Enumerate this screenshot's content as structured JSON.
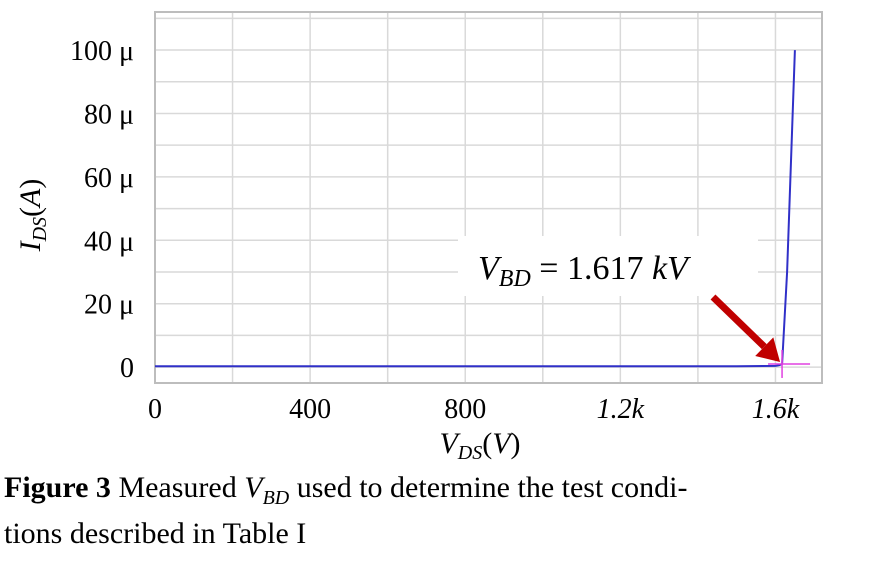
{
  "chart_data": {
    "type": "line",
    "xlabel": "V_DS(V)",
    "ylabel": "I_DS(A)",
    "xlim": [
      0,
      1720
    ],
    "ylim": [
      -5,
      112
    ],
    "x_ticks": [
      {
        "value": 0,
        "label": "0"
      },
      {
        "value": 400,
        "label": "400"
      },
      {
        "value": 800,
        "label": "800"
      },
      {
        "value": 1200,
        "label": "1.2k"
      },
      {
        "value": 1600,
        "label": "1.6k"
      }
    ],
    "y_ticks": [
      {
        "value": 0,
        "label": "0"
      },
      {
        "value": 20,
        "label": "20 μ"
      },
      {
        "value": 40,
        "label": "40 μ"
      },
      {
        "value": 60,
        "label": "60 μ"
      },
      {
        "value": 80,
        "label": "80 μ"
      },
      {
        "value": 100,
        "label": "100 μ"
      }
    ],
    "grid": true,
    "series": [
      {
        "color": "#3030c8",
        "x": [
          0,
          400,
          800,
          1200,
          1500,
          1600,
          1610,
          1617,
          1630,
          1650
        ],
        "y": [
          0.3,
          0.3,
          0.3,
          0.3,
          0.3,
          0.4,
          0.6,
          1.0,
          30,
          100
        ]
      }
    ],
    "marker": {
      "x": 1617,
      "y": 1.0,
      "color": "#e040e0"
    },
    "annotation": {
      "text_var": "V",
      "text_sub": "BD",
      "text_rest": " = 1.617 ",
      "text_unit": "kV",
      "arrow_color": "#c00000"
    }
  },
  "caption": {
    "figure_label": "Figure 3",
    "text_before": " Measured ",
    "var": "V",
    "var_sub": "BD",
    "text_after": " used to determine the test condi-",
    "line2": "tions described in Table I"
  }
}
